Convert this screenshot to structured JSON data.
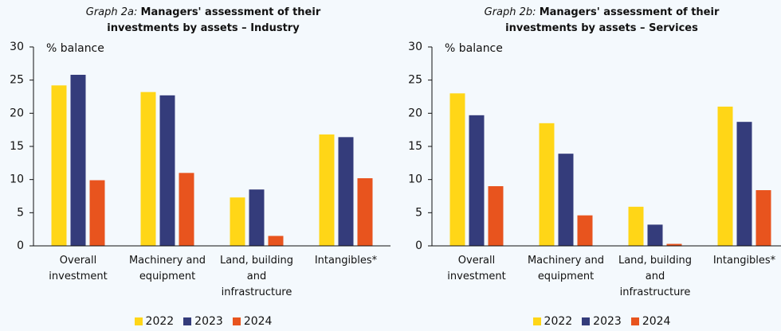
{
  "chart_data": [
    {
      "type": "bar",
      "title_prefix": "Graph 2a:",
      "title": "Managers' assessment of their investments by assets – Industry",
      "y_label": "% balance",
      "categories": [
        "Overall investment",
        "Machinery and equipment",
        "Land, building and infrastructure",
        "Intangibles*"
      ],
      "series": [
        {
          "name": "2022",
          "color": "#ffd617",
          "values": [
            24.2,
            23.2,
            7.3,
            16.8
          ]
        },
        {
          "name": "2023",
          "color": "#343c7b",
          "values": [
            25.8,
            22.7,
            8.5,
            16.4
          ]
        },
        {
          "name": "2024",
          "color": "#e8541e",
          "values": [
            9.9,
            11.0,
            1.5,
            10.2
          ]
        }
      ],
      "ylim": [
        0,
        30
      ],
      "yticks": [
        0,
        5,
        10,
        15,
        20,
        25,
        30
      ]
    },
    {
      "type": "bar",
      "title_prefix": "Graph 2b:",
      "title": "Managers' assessment of their investments by assets – Services",
      "y_label": "% balance",
      "categories": [
        "Overall investment",
        "Machinery and equipment",
        "Land, building and infrastructure",
        "Intangibles*"
      ],
      "series": [
        {
          "name": "2022",
          "color": "#ffd617",
          "values": [
            23.0,
            18.5,
            5.9,
            21.0
          ]
        },
        {
          "name": "2023",
          "color": "#343c7b",
          "values": [
            19.7,
            13.9,
            3.2,
            18.7
          ]
        },
        {
          "name": "2024",
          "color": "#e8541e",
          "values": [
            9.0,
            4.6,
            0.3,
            8.4
          ]
        }
      ],
      "ylim": [
        0,
        30
      ],
      "yticks": [
        0,
        5,
        10,
        15,
        20,
        25,
        30
      ]
    }
  ]
}
